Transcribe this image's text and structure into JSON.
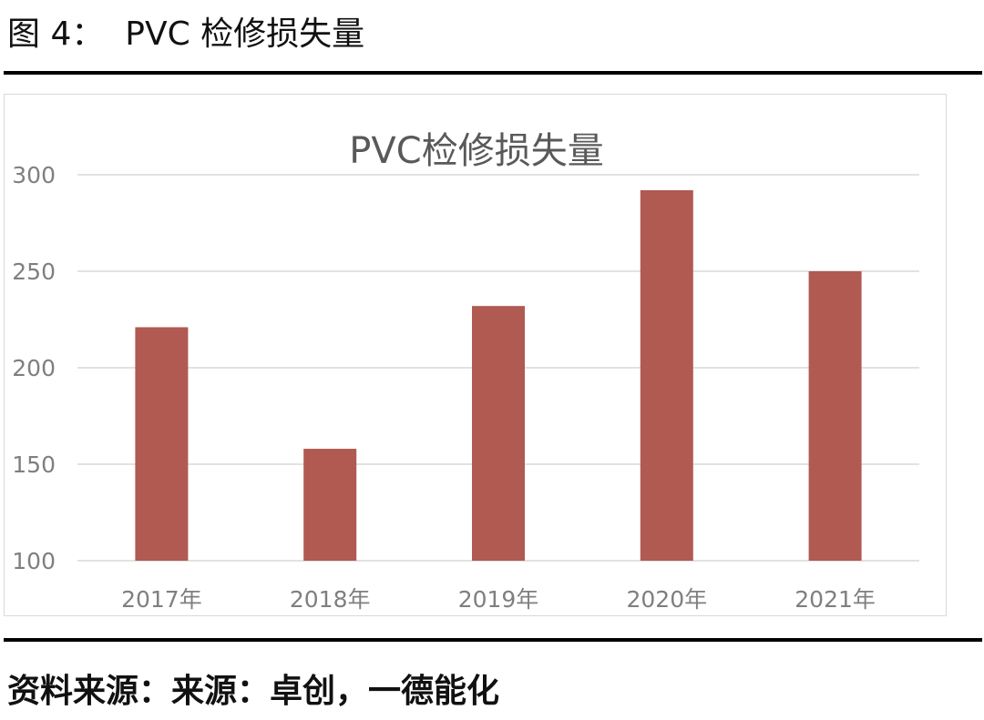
{
  "figure": {
    "caption": "图 4：  PVC 检修损失量",
    "source": "资料来源：来源：卓创，一德能化"
  },
  "chart_data": {
    "type": "bar",
    "title": "PVC检修损失量",
    "categories": [
      "2017年",
      "2018年",
      "2019年",
      "2020年",
      "2021年"
    ],
    "values": [
      221,
      158,
      232,
      292,
      250
    ],
    "xlabel": "",
    "ylabel": "",
    "ylim": [
      100,
      300
    ],
    "yticks": [
      100,
      150,
      200,
      250,
      300
    ],
    "grid": true,
    "legend": "none",
    "bar_color": "#b05a52",
    "grid_color": "#d9d9d9",
    "label_color": "#7f7f7f",
    "title_color": "#595959"
  }
}
